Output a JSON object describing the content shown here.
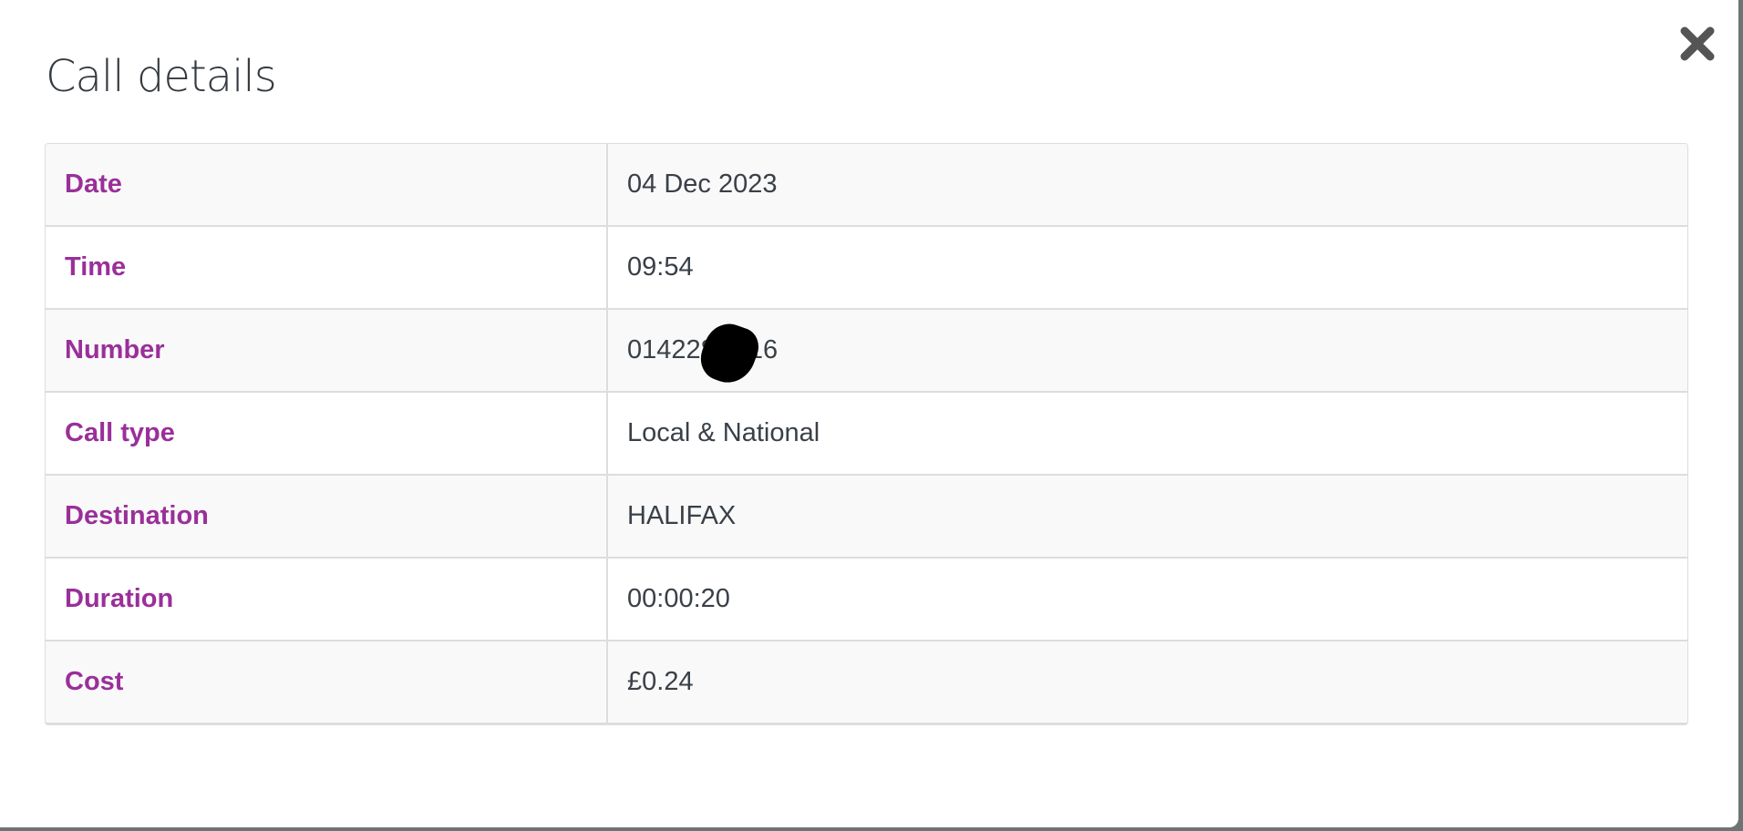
{
  "modal": {
    "title": "Call details",
    "close_icon": "close-x-icon",
    "rows": [
      {
        "label": "Date",
        "value": "04 Dec 2023"
      },
      {
        "label": "Time",
        "value": "09:54"
      },
      {
        "label": "Number",
        "value_prefix": "014228",
        "value_suffix": "616",
        "redacted": true
      },
      {
        "label": "Call type",
        "value": "Local & National"
      },
      {
        "label": "Destination",
        "value": "HALIFAX"
      },
      {
        "label": "Duration",
        "value": "00:00:20"
      },
      {
        "label": "Cost",
        "value": "£0.24"
      }
    ],
    "colors": {
      "label": "#9a2f9a",
      "value": "#3a4047",
      "backdrop": "#6c7576"
    }
  }
}
